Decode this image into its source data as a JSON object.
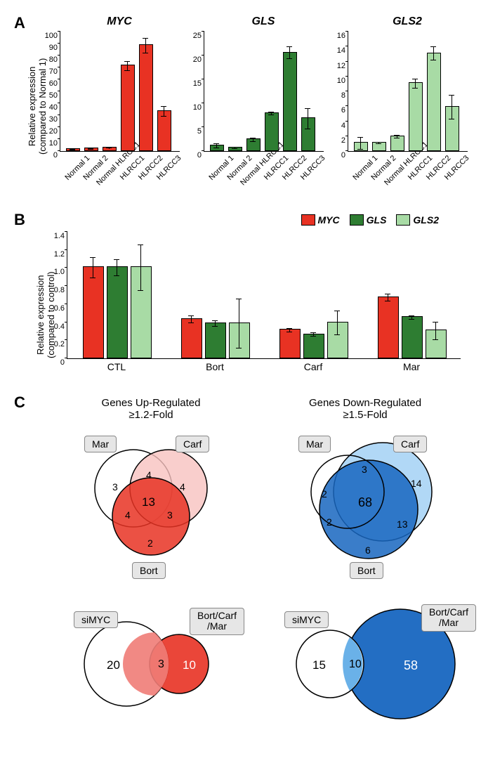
{
  "colors": {
    "myc": "#e83223",
    "gls": "#2e7d32",
    "gls2": "#a8dba5",
    "blue_dark": "#1766c0",
    "blue_mid": "#5aa9e6",
    "blue_light": "#a9d4f5",
    "red_mid": "#ef7c77",
    "red_light": "#f7c2bf",
    "grey_box": "#e6e6e6"
  },
  "panelA": {
    "ylabel": "Relative expression\n(compared to Normal 1)",
    "categories": [
      "Normal 1",
      "Normal 2",
      "Normal HLRCC1",
      "HLRCC1",
      "HLRCC2",
      "HLRCC3"
    ],
    "charts": [
      {
        "title": "MYC",
        "color_key": "myc",
        "ylim": [
          0,
          100
        ],
        "ytick_step": 10,
        "values": [
          1,
          1.5,
          2.5,
          71,
          88,
          33
        ],
        "err": [
          0.3,
          0.3,
          0.3,
          4,
          6,
          4
        ]
      },
      {
        "title": "GLS",
        "color_key": "gls",
        "ylim": [
          0,
          25
        ],
        "ytick_step": 5,
        "values": [
          1,
          0.6,
          2.3,
          7.8,
          20.5,
          6.7
        ],
        "err": [
          0.4,
          0.2,
          0.4,
          0.3,
          1.3,
          2.1
        ]
      },
      {
        "title": "GLS2",
        "color_key": "gls2",
        "ylim": [
          0,
          16
        ],
        "ytick_step": 2,
        "values": [
          1,
          1,
          1.9,
          9,
          13,
          5.8
        ],
        "err": [
          0.8,
          0.1,
          0.2,
          0.6,
          0.9,
          1.6
        ]
      }
    ]
  },
  "panelB": {
    "ylabel": "Relative expression\n(compared to control)",
    "legend": [
      "MYC",
      "GLS",
      "GLS2"
    ],
    "ylim": [
      0,
      1.4
    ],
    "ytick_step": 0.2,
    "groups": [
      "CTL",
      "Bort",
      "Carf",
      "Mar"
    ],
    "series": [
      {
        "color_key": "myc",
        "values": [
          1.0,
          0.43,
          0.31,
          0.67
        ],
        "err": [
          0.11,
          0.04,
          0.02,
          0.04
        ]
      },
      {
        "color_key": "gls",
        "values": [
          1.0,
          0.38,
          0.26,
          0.45
        ],
        "err": [
          0.09,
          0.03,
          0.02,
          0.02
        ]
      },
      {
        "color_key": "gls2",
        "values": [
          1.0,
          0.38,
          0.39,
          0.3
        ],
        "err": [
          0.25,
          0.27,
          0.13,
          0.1
        ]
      }
    ]
  },
  "panelC": {
    "up": {
      "title": "Genes Up-Regulated\n≥1.2-Fold",
      "labels": {
        "mar": "Mar",
        "carf": "Carf",
        "bort": "Bort"
      },
      "nums": {
        "mar_only": "3",
        "carf_only": "4",
        "bort_only": "2",
        "mar_carf": "4",
        "mar_bort": "4",
        "carf_bort": "3",
        "all": "13"
      }
    },
    "down": {
      "title": "Genes Down-Regulated\n≥1.5-Fold",
      "labels": {
        "mar": "Mar",
        "carf": "Carf",
        "bort": "Bort"
      },
      "nums": {
        "mar_only": "2",
        "carf_only": "14",
        "bort_only": "6",
        "mar_carf": "3",
        "mar_bort": "2",
        "carf_bort": "13",
        "all": "68"
      }
    },
    "bottom_left": {
      "labels": {
        "simyc": "siMYC",
        "combo": "Bort/Carf\n/Mar"
      },
      "nums": {
        "simyc_only": "20",
        "overlap": "3",
        "combo_only": "10"
      }
    },
    "bottom_right": {
      "labels": {
        "simyc": "siMYC",
        "combo": "Bort/Carf\n/Mar"
      },
      "nums": {
        "simyc_only": "15",
        "overlap": "10",
        "combo_only": "58"
      }
    }
  }
}
